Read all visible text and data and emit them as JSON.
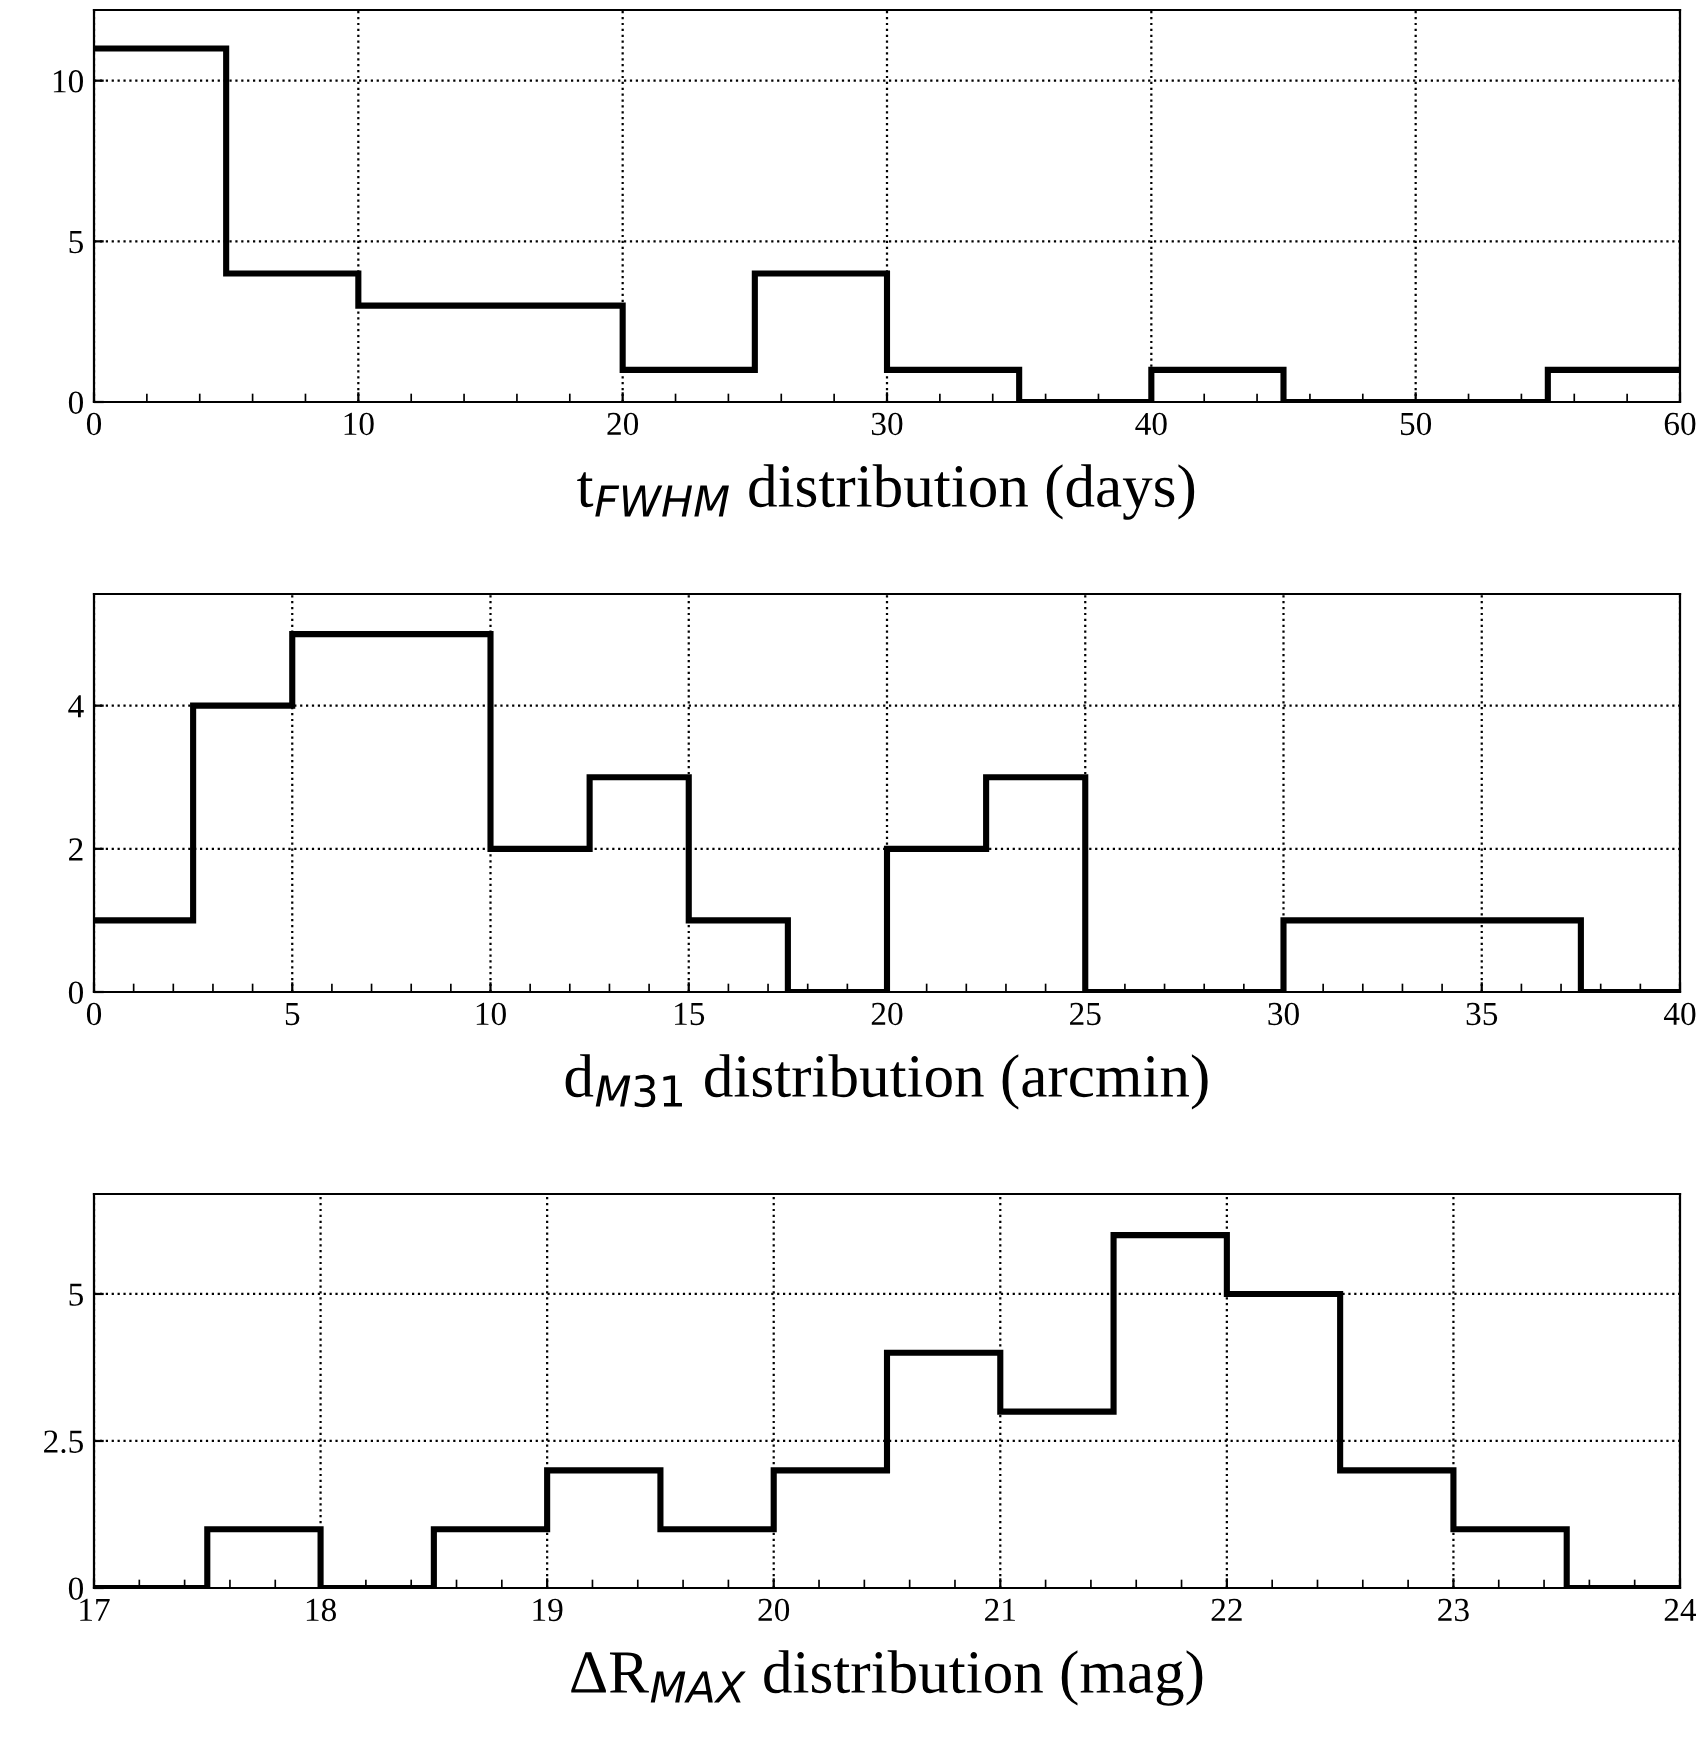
{
  "chart_data": [
    {
      "type": "histogram",
      "xlabel": "t$_{FWHM}$ distribution (days)",
      "bins": [
        0,
        5,
        10,
        15,
        20,
        25,
        30,
        35,
        40,
        45,
        50,
        55,
        60
      ],
      "values": [
        11,
        4,
        3,
        3,
        1,
        4,
        1,
        0,
        1,
        0,
        0,
        1
      ],
      "color": "#000000",
      "xlim": [
        0,
        60
      ],
      "xticks": [
        0,
        10,
        20,
        30,
        40,
        50,
        60
      ],
      "ylim": [
        0,
        12.2
      ],
      "yticks": [
        0,
        5,
        10
      ],
      "grid": true,
      "line_style": "dotted"
    },
    {
      "type": "histogram",
      "xlabel": "d$_{M31}$ distribution (arcmin)",
      "bins": [
        0,
        2.5,
        5,
        7.5,
        10,
        12.5,
        15,
        17.5,
        20,
        22.5,
        25,
        27.5,
        30,
        32.5,
        35,
        37.5,
        40
      ],
      "values": [
        1,
        4,
        5,
        5,
        2,
        3,
        1,
        0,
        2,
        3,
        0,
        0,
        1,
        1,
        1,
        0
      ],
      "color": "#000000",
      "xlim": [
        0,
        40
      ],
      "xticks": [
        0,
        5,
        10,
        15,
        20,
        25,
        30,
        35,
        40
      ],
      "ylim": [
        0,
        5.56
      ],
      "yticks": [
        0,
        2,
        4
      ],
      "grid": true,
      "line_style": "dotted"
    },
    {
      "type": "histogram",
      "xlabel": "ΔR$_{MAX}$ distribution (mag)",
      "bins": [
        17,
        17.5,
        18,
        18.5,
        19,
        19.5,
        20,
        20.5,
        21,
        21.5,
        22,
        22.5,
        23,
        23.5,
        24
      ],
      "values": [
        0,
        1,
        0,
        1,
        2,
        1,
        2,
        4,
        3,
        6,
        5,
        2,
        1,
        0
      ],
      "color": "#000000",
      "xlim": [
        17,
        24
      ],
      "xticks": [
        17,
        18,
        19,
        20,
        21,
        22,
        23,
        24
      ],
      "ylim": [
        0,
        6.7
      ],
      "yticks": [
        0,
        2.5,
        5
      ],
      "grid": true,
      "line_style": "dotted"
    }
  ]
}
